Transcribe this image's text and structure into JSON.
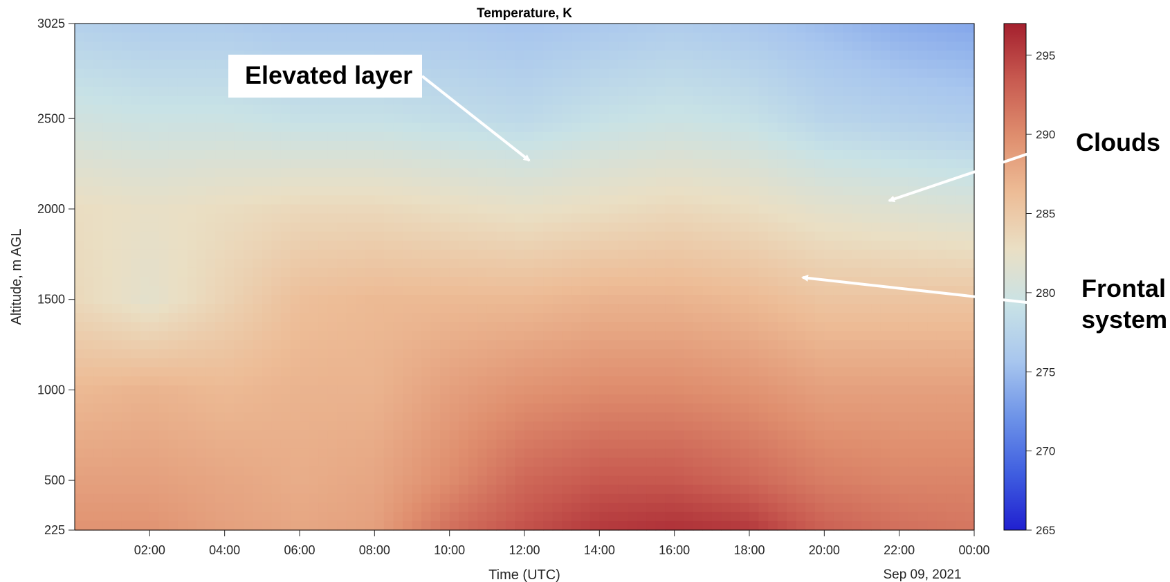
{
  "chart_data": {
    "type": "heatmap",
    "title": "Temperature, K",
    "xlabel": "Time (UTC)",
    "ylabel": "Altitude, m AGL",
    "date_label": "Sep 09, 2021",
    "x_start": "00:00",
    "x_end": "24:00",
    "x_tick_values": [
      2,
      4,
      6,
      8,
      10,
      12,
      14,
      16,
      18,
      20,
      22,
      24
    ],
    "x_tick_labels": [
      "02:00",
      "04:00",
      "06:00",
      "08:00",
      "10:00",
      "12:00",
      "14:00",
      "16:00",
      "18:00",
      "20:00",
      "22:00",
      "00:00"
    ],
    "ylim": [
      225,
      3025
    ],
    "y_tick_values": [
      225,
      500,
      1000,
      1500,
      2000,
      2500,
      3025
    ],
    "y_tick_labels": [
      "225",
      "500",
      "1000",
      "1500",
      "2000",
      "2500",
      "3025"
    ],
    "colorbar": {
      "range": [
        265,
        297
      ],
      "tick_values": [
        265,
        270,
        275,
        280,
        285,
        290,
        295
      ],
      "tick_labels": [
        "265",
        "270",
        "275",
        "280",
        "285",
        "290",
        "295"
      ],
      "colormap": [
        "#2020d0",
        "#3f5ee0",
        "#6d93e8",
        "#a8c6ee",
        "#c8e2e6",
        "#eadfc4",
        "#edbc96",
        "#df8e6e",
        "#c85a50",
        "#a4202e"
      ]
    },
    "temperature_profile": {
      "altitude_m": [
        225,
        500,
        1000,
        1500,
        2000,
        2500,
        3025
      ],
      "times_h": [
        0,
        2,
        4,
        6,
        8,
        10,
        12,
        14,
        16,
        18,
        20,
        22,
        24
      ],
      "values_K": [
        [
          289.5,
          289.5,
          288.5,
          288,
          288.5,
          292,
          294,
          295.5,
          296,
          295.5,
          293,
          292,
          291.5
        ],
        [
          288.5,
          288.5,
          288,
          287.5,
          288,
          290,
          292.5,
          293.5,
          293.5,
          292.5,
          291,
          290.5,
          290.5
        ],
        [
          286.5,
          287,
          286.5,
          287,
          287,
          288.5,
          289.5,
          290,
          290,
          289.5,
          288.5,
          288.5,
          288.5
        ],
        [
          283.5,
          282,
          284,
          286,
          286.5,
          286.5,
          286.5,
          287,
          287,
          286.5,
          285.5,
          285.5,
          285.5
        ],
        [
          283,
          282.5,
          283,
          283.5,
          283.5,
          283,
          282.5,
          283,
          283.5,
          283,
          282,
          281.5,
          281
        ],
        [
          280,
          279.5,
          279.5,
          279,
          279,
          278.5,
          278,
          279,
          279.5,
          279,
          277.5,
          277,
          276.5
        ],
        [
          277,
          276.5,
          276.5,
          276,
          276,
          276,
          275.5,
          276,
          276.5,
          276,
          275,
          274,
          273.5
        ]
      ]
    }
  },
  "annotations": {
    "elevated": "Elevated layer",
    "clouds": "Clouds",
    "frontal_line1": "Frontal",
    "frontal_line2": "system"
  }
}
